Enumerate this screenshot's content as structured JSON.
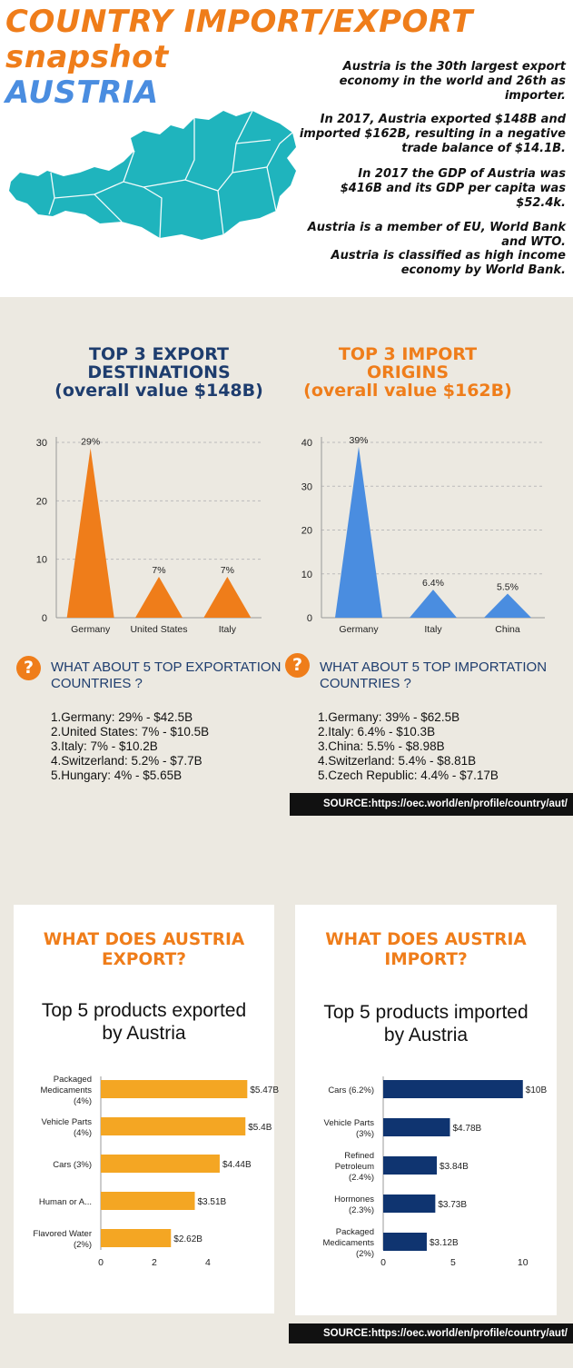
{
  "header": {
    "title_line1": "COUNTRY IMPORT/EXPORT",
    "title_line2": "snapshot",
    "country": "AUSTRIA",
    "paragraphs": [
      "Austria is the 30th largest export economy in the world and 26th as importer.",
      "In 2017, Austria exported $148B and imported $162B, resulting in a negative trade balance of $14.1B.",
      "In 2017 the GDP of Austria was $416B and its GDP per capita was $52.4k.",
      "Austria is a member of EU, World Bank and WTO.",
      "Austria is classified as high income economy by World Bank."
    ]
  },
  "colors": {
    "orange": "#ef7d1a",
    "blue": "#4a8de0",
    "navy": "#1e3d6e",
    "yellow": "#f4a623",
    "dark_navy": "#0f3470",
    "map_teal": "#1fb4bd"
  },
  "export_section": {
    "title_line1": "TOP 3 EXPORT",
    "title_line2": "DESTINATIONS",
    "title_line3": "(overall value $148B)",
    "question_mark": "?",
    "q_heading_line1": "WHAT ABOUT 5 TOP EXPORTATION",
    "q_heading_line2": "COUNTRIES ?",
    "list": [
      "1.Germany: 29% - $42.5B",
      "2.United States: 7% - $10.5B",
      "3.Italy: 7% - $10.2B",
      "4.Switzerland: 5.2% - $7.7B",
      "5.Hungary: 4% - $5.65B"
    ]
  },
  "import_section": {
    "title_line1": "TOP 3 IMPORT",
    "title_line2": "ORIGINS",
    "title_line3": "(overall value $162B)",
    "question_mark": "?",
    "q_heading_line1": "WHAT ABOUT 5 TOP IMPORTATION",
    "q_heading_line2": "COUNTRIES ?",
    "list": [
      "1.Germany: 39% - $62.5B",
      "2.Italy: 6.4% - $10.3B",
      "3.China: 5.5% - $8.98B",
      "4.Switzerland: 5.4% - $8.81B",
      "5.Czech Republic: 4.4% - $7.17B"
    ]
  },
  "source_text": "SOURCE:https://oec.world/en/profile/country/aut/",
  "export_card": {
    "title_line1": "WHAT DOES AUSTRIA",
    "title_line2": "EXPORT?",
    "sub_line1": "Top 5 products exported",
    "sub_line2": "by Austria"
  },
  "import_card": {
    "title_line1": "WHAT DOES AUSTRIA",
    "title_line2": "IMPORT?",
    "sub_line1": "Top 5 products imported",
    "sub_line2": "by Austria"
  },
  "chart_data": [
    {
      "type": "bar",
      "id": "export-destinations",
      "categories": [
        "Germany",
        "United States",
        "Italy"
      ],
      "values": [
        29,
        7,
        7
      ],
      "value_labels": [
        "29%",
        "7%",
        "7%"
      ],
      "yticks": [
        0,
        10,
        20,
        30
      ],
      "ylim": [
        0,
        30
      ],
      "grid": true,
      "color": "#ef7d1a"
    },
    {
      "type": "bar",
      "id": "import-origins",
      "categories": [
        "Germany",
        "Italy",
        "China"
      ],
      "values": [
        39,
        6.4,
        5.5
      ],
      "value_labels": [
        "39%",
        "6.4%",
        "5.5%"
      ],
      "yticks": [
        0,
        10,
        20,
        30,
        40
      ],
      "ylim": [
        0,
        40
      ],
      "grid": true,
      "color": "#4a8de0"
    },
    {
      "type": "bar",
      "id": "export-products",
      "orientation": "horizontal",
      "categories": [
        [
          "Packaged",
          "Medicaments",
          "(4%)"
        ],
        [
          "Vehicle Parts",
          "(4%)"
        ],
        [
          "Cars (3%)"
        ],
        [
          "Human or A..."
        ],
        [
          "Flavored Water",
          "(2%)"
        ]
      ],
      "values": [
        5.47,
        5.4,
        4.44,
        3.51,
        2.62
      ],
      "value_labels": [
        "$5.47B",
        "$5.4B",
        "$4.44B",
        "$3.51B",
        "$2.62B"
      ],
      "xticks": [
        0,
        2,
        4
      ],
      "xlim": [
        0,
        5.9
      ],
      "color": "#f4a623"
    },
    {
      "type": "bar",
      "id": "import-products",
      "orientation": "horizontal",
      "categories": [
        [
          "Cars (6.2%)"
        ],
        [
          "Vehicle Parts",
          "(3%)"
        ],
        [
          "Refined",
          "Petroleum",
          "(2.4%)"
        ],
        [
          "Hormones",
          "(2.3%)"
        ],
        [
          "Packaged",
          "Medicaments",
          "(2%)"
        ]
      ],
      "values": [
        10,
        4.78,
        3.84,
        3.73,
        3.12
      ],
      "value_labels": [
        "$10B",
        "$4.78B",
        "$3.84B",
        "$3.73B",
        "$3.12B"
      ],
      "xticks": [
        0,
        5,
        10
      ],
      "xlim": [
        0,
        10.6
      ],
      "color": "#0f3470"
    }
  ]
}
